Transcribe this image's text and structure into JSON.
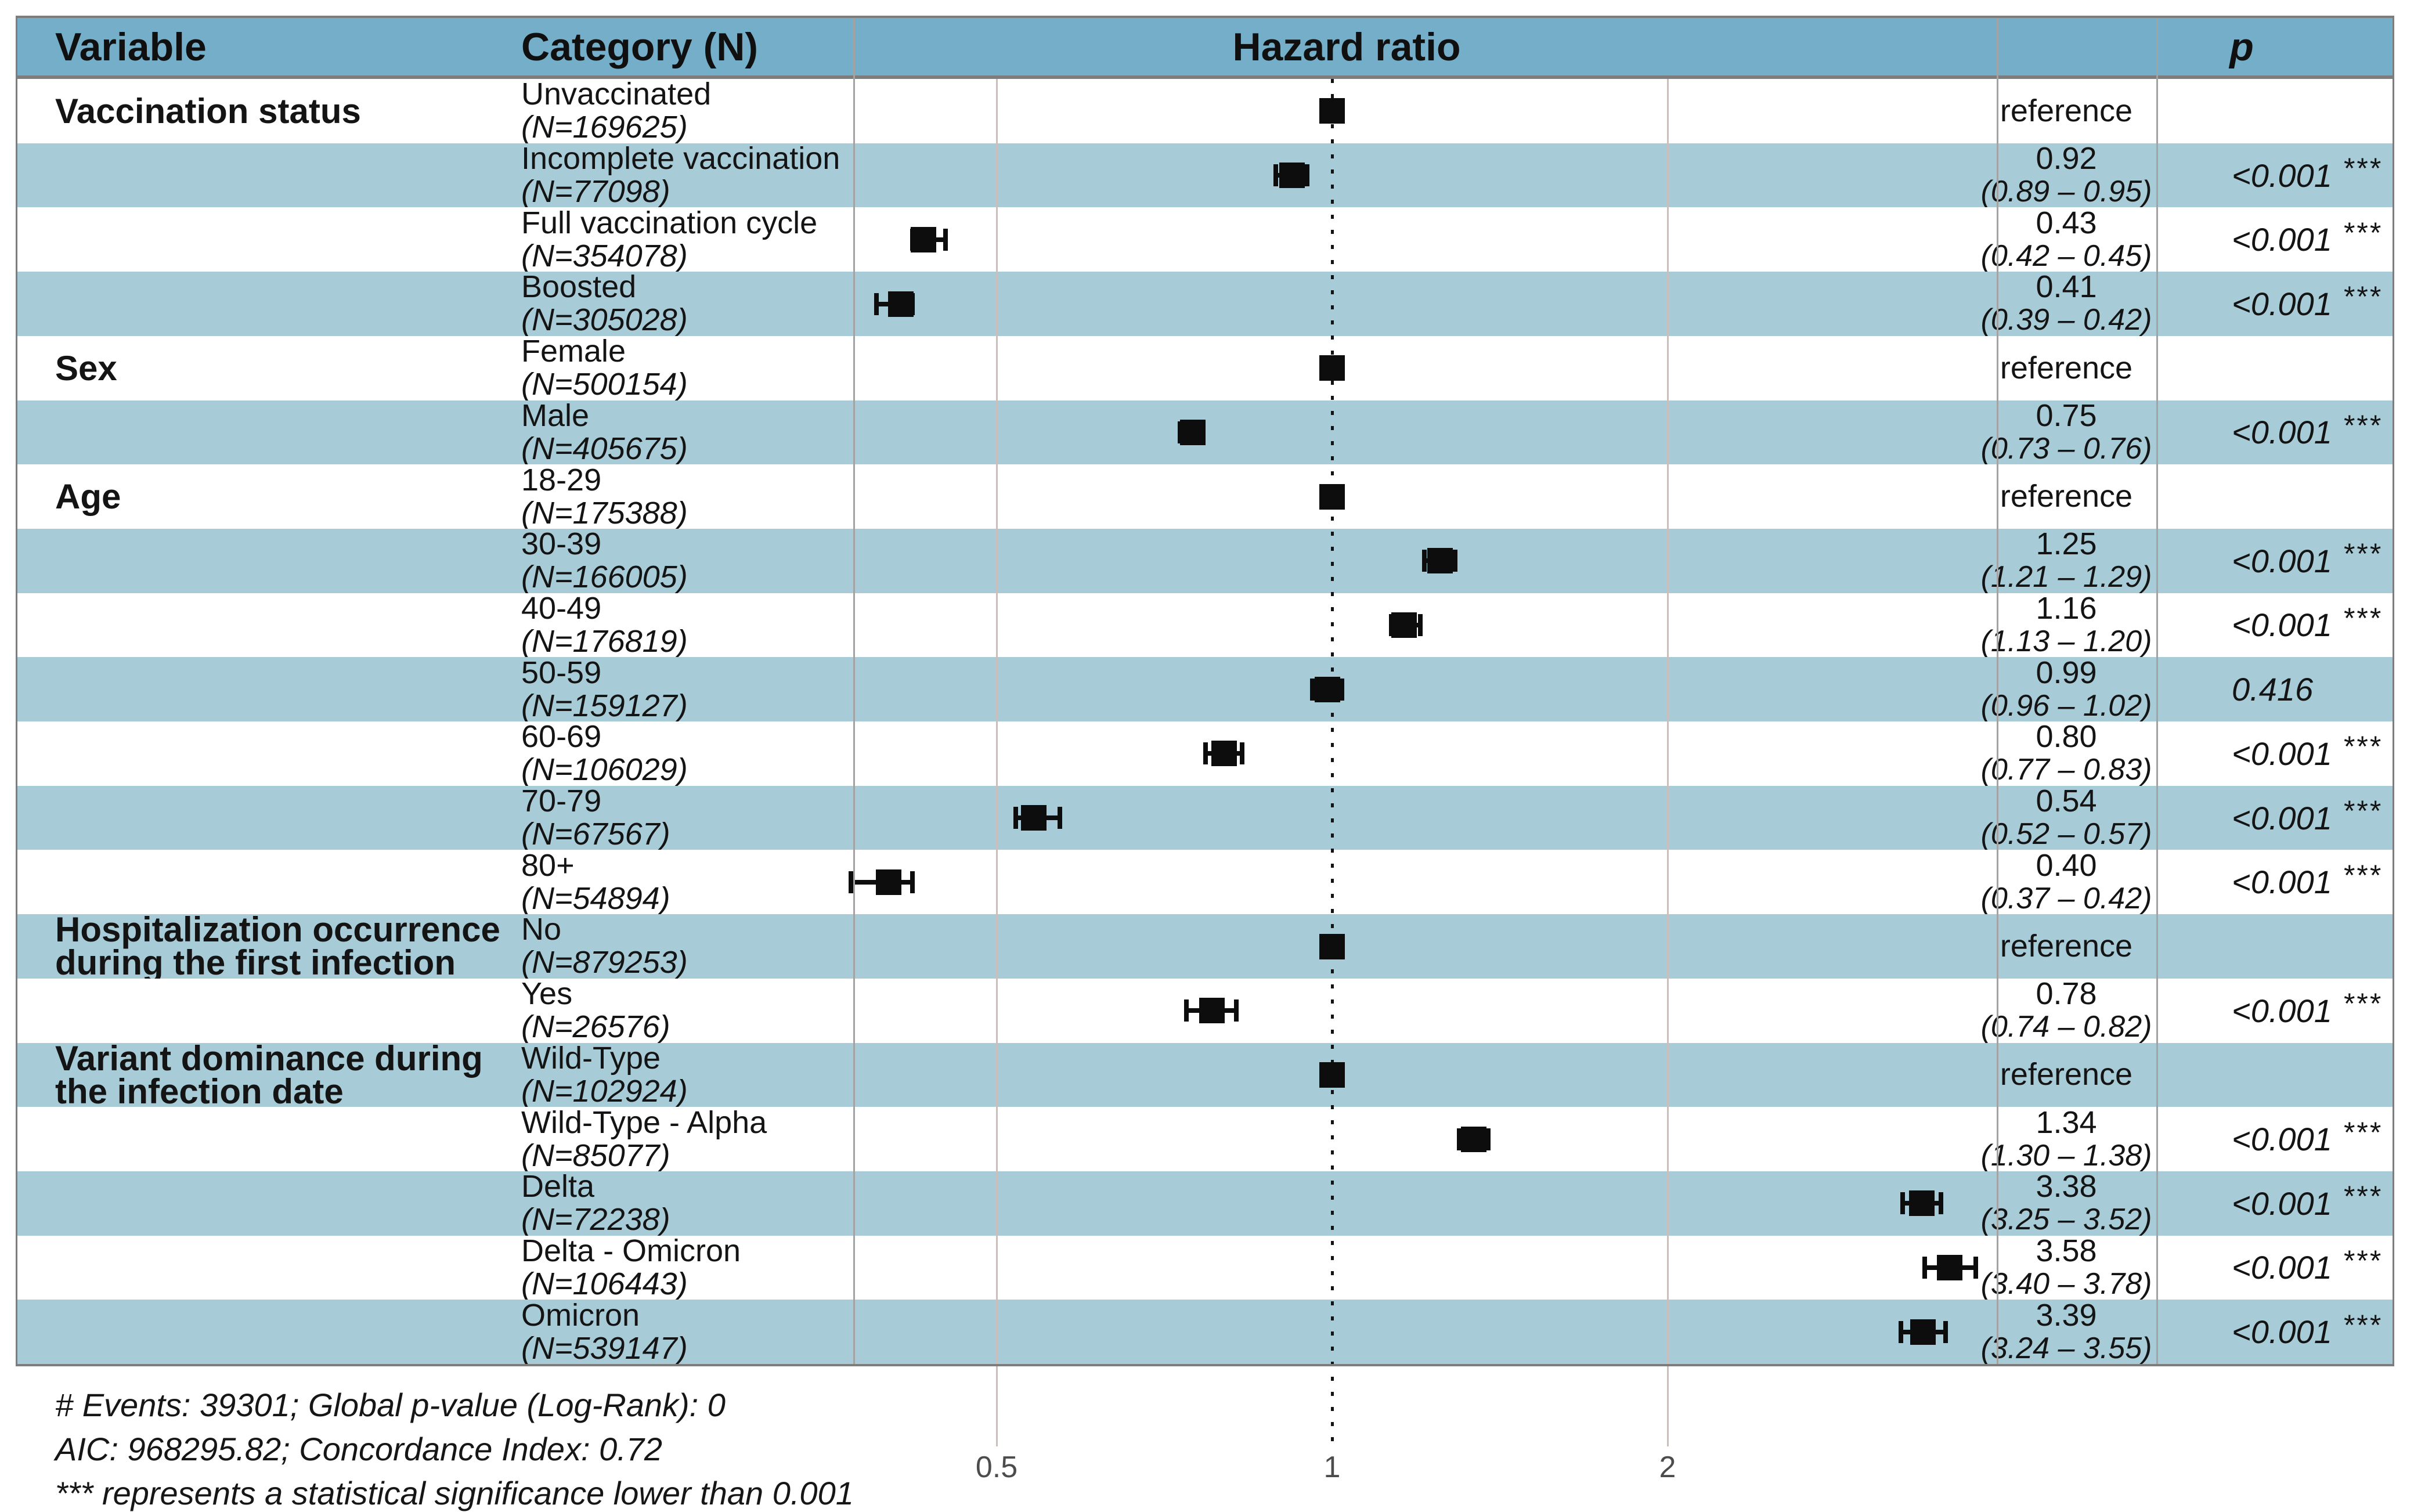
{
  "header": {
    "variable": "Variable",
    "category": "Category (N)",
    "hazard_ratio": "Hazard ratio",
    "p": "p"
  },
  "footnotes": [
    "# Events: 39301; Global p-value (Log-Rank): 0",
    "AIC: 968295.82; Concordance Index: 0.72",
    "*** represents a statistical significance lower than 0.001"
  ],
  "colors": {
    "header_bg": "#74aec8",
    "stripe_bg": "#a7ccd8",
    "border_dark": "#7d7d7d",
    "separator": "#a3a3a3",
    "grid_line": "#c9bfbc",
    "marker": "#0d0d0d",
    "tick_text": "#4c4c4c"
  },
  "chart_data": {
    "type": "scatter",
    "subtype": "forest-plot",
    "title": "Hazard ratio",
    "x_scale": "log",
    "x_tick_labels": [
      "0.5",
      "1",
      "2"
    ],
    "x_tick_values": [
      0.5,
      1,
      2
    ],
    "reference_line": 1,
    "xlim": [
      0.36,
      4.0
    ],
    "rows": [
      {
        "variable_lines": [
          "Vaccination status"
        ],
        "category": "Unvaccinated",
        "n_label": "(N=169625)",
        "hr": 1.0,
        "reference": true,
        "hr_label": "reference",
        "p_label": "",
        "stars": ""
      },
      {
        "variable_lines": [],
        "category": "Incomplete vaccination",
        "n_label": "(N=77098)",
        "hr": 0.92,
        "ci_low": 0.89,
        "ci_high": 0.95,
        "hr_label": "0.92",
        "ci_label": "(0.89 – 0.95)",
        "p_label": "<0.001",
        "stars": "***"
      },
      {
        "variable_lines": [],
        "category": "Full vaccination cycle",
        "n_label": "(N=354078)",
        "hr": 0.43,
        "ci_low": 0.42,
        "ci_high": 0.45,
        "hr_label": "0.43",
        "ci_label": "(0.42 – 0.45)",
        "p_label": "<0.001",
        "stars": "***"
      },
      {
        "variable_lines": [],
        "category": "Boosted",
        "n_label": "(N=305028)",
        "hr": 0.41,
        "ci_low": 0.39,
        "ci_high": 0.42,
        "hr_label": "0.41",
        "ci_label": "(0.39 – 0.42)",
        "p_label": "<0.001",
        "stars": "***"
      },
      {
        "variable_lines": [
          "Sex"
        ],
        "category": "Female",
        "n_label": "(N=500154)",
        "hr": 1.0,
        "reference": true,
        "hr_label": "reference",
        "p_label": "",
        "stars": ""
      },
      {
        "variable_lines": [],
        "category": "Male",
        "n_label": "(N=405675)",
        "hr": 0.75,
        "ci_low": 0.73,
        "ci_high": 0.76,
        "hr_label": "0.75",
        "ci_label": "(0.73 – 0.76)",
        "p_label": "<0.001",
        "stars": "***"
      },
      {
        "variable_lines": [
          "Age"
        ],
        "category": "18-29",
        "n_label": "(N=175388)",
        "hr": 1.0,
        "reference": true,
        "hr_label": "reference",
        "p_label": "",
        "stars": ""
      },
      {
        "variable_lines": [],
        "category": "30-39",
        "n_label": "(N=166005)",
        "hr": 1.25,
        "ci_low": 1.21,
        "ci_high": 1.29,
        "hr_label": "1.25",
        "ci_label": "(1.21 – 1.29)",
        "p_label": "<0.001",
        "stars": "***"
      },
      {
        "variable_lines": [],
        "category": "40-49",
        "n_label": "(N=176819)",
        "hr": 1.16,
        "ci_low": 1.13,
        "ci_high": 1.2,
        "hr_label": "1.16",
        "ci_label": "(1.13 – 1.20)",
        "p_label": "<0.001",
        "stars": "***"
      },
      {
        "variable_lines": [],
        "category": "50-59",
        "n_label": "(N=159127)",
        "hr": 0.99,
        "ci_low": 0.96,
        "ci_high": 1.02,
        "hr_label": "0.99",
        "ci_label": "(0.96 – 1.02)",
        "p_label": "0.416",
        "stars": ""
      },
      {
        "variable_lines": [],
        "category": "60-69",
        "n_label": "(N=106029)",
        "hr": 0.8,
        "ci_low": 0.77,
        "ci_high": 0.83,
        "hr_label": "0.80",
        "ci_label": "(0.77 – 0.83)",
        "p_label": "<0.001",
        "stars": "***"
      },
      {
        "variable_lines": [],
        "category": "70-79",
        "n_label": "(N=67567)",
        "hr": 0.54,
        "ci_low": 0.52,
        "ci_high": 0.57,
        "hr_label": "0.54",
        "ci_label": "(0.52 – 0.57)",
        "p_label": "<0.001",
        "stars": "***"
      },
      {
        "variable_lines": [],
        "category": "80+",
        "n_label": "(N=54894)",
        "hr": 0.4,
        "ci_low": 0.37,
        "ci_high": 0.42,
        "hr_label": "0.40",
        "ci_label": "(0.37 – 0.42)",
        "p_label": "<0.001",
        "stars": "***"
      },
      {
        "variable_lines": [
          "Hospitalization occurrence",
          "during the first infection"
        ],
        "category": "No",
        "n_label": "(N=879253)",
        "hr": 1.0,
        "reference": true,
        "hr_label": "reference",
        "p_label": "",
        "stars": ""
      },
      {
        "variable_lines": [],
        "category": "Yes",
        "n_label": "(N=26576)",
        "hr": 0.78,
        "ci_low": 0.74,
        "ci_high": 0.82,
        "hr_label": "0.78",
        "ci_label": "(0.74 – 0.82)",
        "p_label": "<0.001",
        "stars": "***"
      },
      {
        "variable_lines": [
          "Variant dominance during",
          "the infection date"
        ],
        "category": "Wild-Type",
        "n_label": "(N=102924)",
        "hr": 1.0,
        "reference": true,
        "hr_label": "reference",
        "p_label": "",
        "stars": ""
      },
      {
        "variable_lines": [],
        "category": "Wild-Type - Alpha",
        "n_label": "(N=85077)",
        "hr": 1.34,
        "ci_low": 1.3,
        "ci_high": 1.38,
        "hr_label": "1.34",
        "ci_label": "(1.30 – 1.38)",
        "p_label": "<0.001",
        "stars": "***"
      },
      {
        "variable_lines": [],
        "category": "Delta",
        "n_label": "(N=72238)",
        "hr": 3.38,
        "ci_low": 3.25,
        "ci_high": 3.52,
        "hr_label": "3.38",
        "ci_label": "(3.25 – 3.52)",
        "p_label": "<0.001",
        "stars": "***"
      },
      {
        "variable_lines": [],
        "category": "Delta - Omicron",
        "n_label": "(N=106443)",
        "hr": 3.58,
        "ci_low": 3.4,
        "ci_high": 3.78,
        "hr_label": "3.58",
        "ci_label": "(3.40 – 3.78)",
        "p_label": "<0.001",
        "stars": "***"
      },
      {
        "variable_lines": [],
        "category": "Omicron",
        "n_label": "(N=539147)",
        "hr": 3.39,
        "ci_low": 3.24,
        "ci_high": 3.55,
        "hr_label": "3.39",
        "ci_label": "(3.24 – 3.55)",
        "p_label": "<0.001",
        "stars": "***"
      }
    ]
  }
}
